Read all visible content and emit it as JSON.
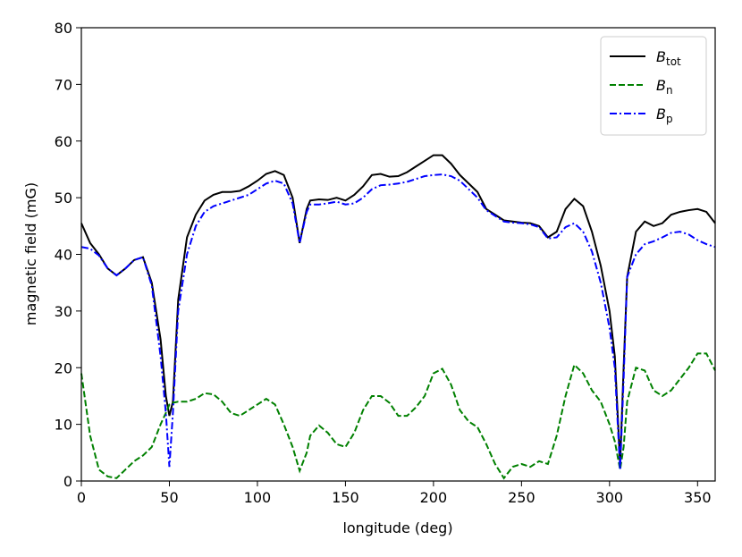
{
  "chart_data": {
    "type": "line",
    "xlabel": "longitude (deg)",
    "ylabel": "magnetic field (mG)",
    "xlim": [
      0,
      360
    ],
    "ylim": [
      0,
      80
    ],
    "xticks": [
      0,
      50,
      100,
      150,
      200,
      250,
      300,
      350
    ],
    "yticks": [
      0,
      10,
      20,
      30,
      40,
      50,
      60,
      70,
      80
    ],
    "legend": "upper right",
    "x": [
      0,
      5,
      10,
      15,
      20,
      25,
      30,
      35,
      40,
      45,
      48,
      50,
      52,
      55,
      60,
      65,
      70,
      75,
      80,
      85,
      90,
      95,
      100,
      105,
      110,
      115,
      120,
      124,
      128,
      130,
      135,
      140,
      145,
      150,
      155,
      160,
      165,
      170,
      175,
      180,
      185,
      190,
      195,
      200,
      205,
      210,
      215,
      220,
      225,
      230,
      235,
      240,
      245,
      250,
      255,
      260,
      265,
      270,
      275,
      280,
      285,
      290,
      295,
      300,
      303,
      306,
      308,
      310,
      315,
      320,
      325,
      330,
      335,
      340,
      345,
      350,
      355,
      360
    ],
    "series": [
      {
        "name": "B_tot",
        "color": "#000000",
        "dash": "solid",
        "values": [
          45.5,
          42,
          40,
          37.5,
          36.3,
          37.5,
          39,
          39.5,
          35,
          25,
          15,
          11.5,
          14,
          32,
          43,
          47,
          49.5,
          50.5,
          51,
          51,
          51.2,
          52,
          53,
          54.2,
          54.7,
          54,
          50,
          42,
          48,
          49.5,
          49.7,
          49.6,
          50,
          49.5,
          50.5,
          52,
          54,
          54.2,
          53.7,
          53.8,
          54.5,
          55.5,
          56.5,
          57.5,
          57.5,
          56,
          54,
          52.5,
          51,
          48,
          47,
          46,
          45.8,
          45.6,
          45.5,
          45,
          43,
          44,
          48,
          49.8,
          48.5,
          44,
          38,
          30,
          22,
          3,
          20,
          36,
          44,
          45.8,
          45,
          45.5,
          47,
          47.5,
          47.8,
          48,
          47.5,
          45.5
        ]
      },
      {
        "name": "B_n",
        "color": "#008000",
        "dash": "dashed",
        "values": [
          19,
          8,
          2,
          0.8,
          0.5,
          2,
          3.5,
          4.5,
          6,
          10,
          12,
          13.5,
          13.8,
          14,
          14,
          14.5,
          15.5,
          15.3,
          14,
          12,
          11.5,
          12.5,
          13.5,
          14.5,
          13.5,
          10,
          6,
          1.8,
          5,
          8,
          9.8,
          8.5,
          6.5,
          6,
          8.5,
          12.5,
          15,
          15,
          13.8,
          11.5,
          11.5,
          13,
          15,
          19,
          19.8,
          17,
          12.5,
          10.5,
          9.5,
          6.5,
          3,
          0.5,
          2.5,
          3,
          2.5,
          3.5,
          3,
          8,
          15,
          20.5,
          19,
          16,
          14,
          10,
          7,
          2,
          6,
          14,
          20,
          19.5,
          16,
          15,
          16,
          18,
          20,
          22.5,
          22.5,
          19.5
        ]
      },
      {
        "name": "B_p",
        "color": "#0000ff",
        "dash": "dashdot",
        "values": [
          41.3,
          41,
          39.8,
          37.5,
          36.3,
          37.5,
          39,
          39.5,
          34.5,
          22,
          12,
          2.5,
          12,
          30,
          40,
          45,
          47.5,
          48.5,
          49,
          49.5,
          50,
          50.5,
          51.5,
          52.5,
          53,
          52.5,
          49,
          42,
          47.5,
          48.8,
          48.8,
          49,
          49.3,
          48.8,
          49,
          50,
          51.5,
          52.2,
          52.3,
          52.5,
          52.8,
          53.3,
          53.8,
          54,
          54.1,
          53.8,
          53,
          51.5,
          50,
          47.8,
          46.8,
          45.8,
          45.6,
          45.5,
          45.3,
          44.8,
          42.8,
          43,
          44.8,
          45.5,
          44,
          40.5,
          35,
          27,
          20,
          2,
          18,
          36,
          40,
          41.8,
          42.3,
          43,
          43.8,
          44,
          43.5,
          42.5,
          41.8,
          41.3
        ]
      }
    ]
  }
}
